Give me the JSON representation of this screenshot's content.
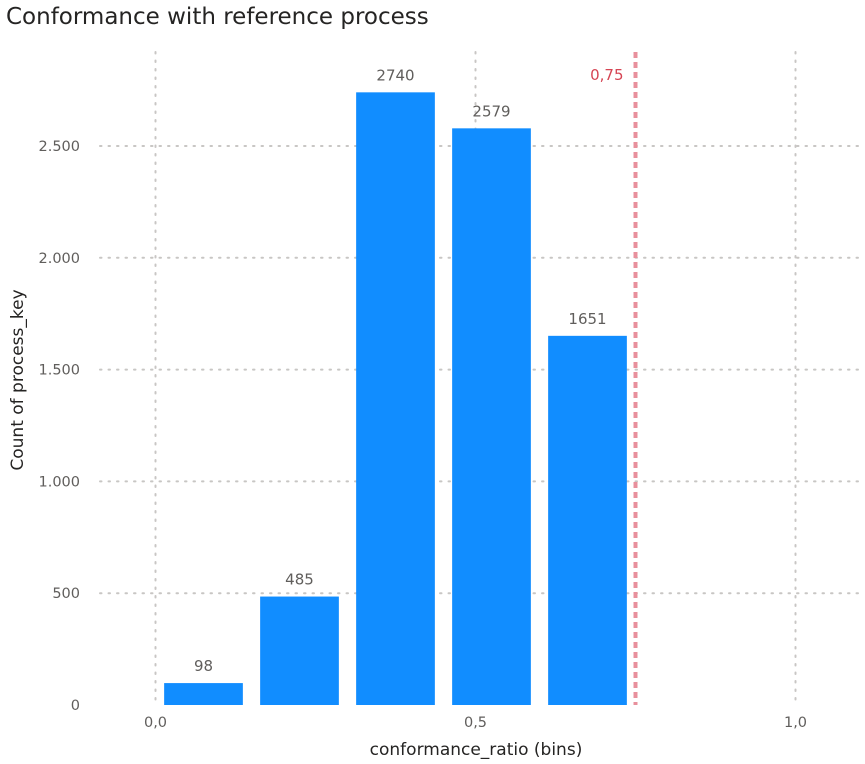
{
  "chart_data": {
    "type": "bar",
    "title": "Conformance with reference process",
    "xlabel": "conformance_ratio (bins)",
    "ylabel": "Count of process_key",
    "bin_size": 0.15,
    "x_min": -0.05,
    "x_max": 1.1,
    "ylim": [
      0,
      2800
    ],
    "bins": [
      {
        "start": 0.0,
        "value": 98,
        "label": "98"
      },
      {
        "start": 0.15,
        "value": 485,
        "label": "485"
      },
      {
        "start": 0.3,
        "value": 2740,
        "label": "2740"
      },
      {
        "start": 0.45,
        "value": 2579,
        "label": "2579"
      },
      {
        "start": 0.6,
        "value": 1651,
        "label": "1651"
      }
    ],
    "x_ticks": [
      {
        "value": 0.0,
        "label": "0,0"
      },
      {
        "value": 0.5,
        "label": "0,5"
      },
      {
        "value": 1.0,
        "label": "1,0"
      }
    ],
    "y_ticks": [
      {
        "value": 0,
        "label": "0"
      },
      {
        "value": 500,
        "label": "500"
      },
      {
        "value": 1000,
        "label": "1.000"
      },
      {
        "value": 1500,
        "label": "1.500"
      },
      {
        "value": 2000,
        "label": "2.000"
      },
      {
        "value": 2500,
        "label": "2.500"
      }
    ],
    "reference_line": {
      "value": 0.75,
      "label": "0,75",
      "color": "#e8909c",
      "label_color": "#d64554"
    },
    "bar_color": "#118dff",
    "grid": true,
    "grid_color": "#c8c6c4"
  }
}
